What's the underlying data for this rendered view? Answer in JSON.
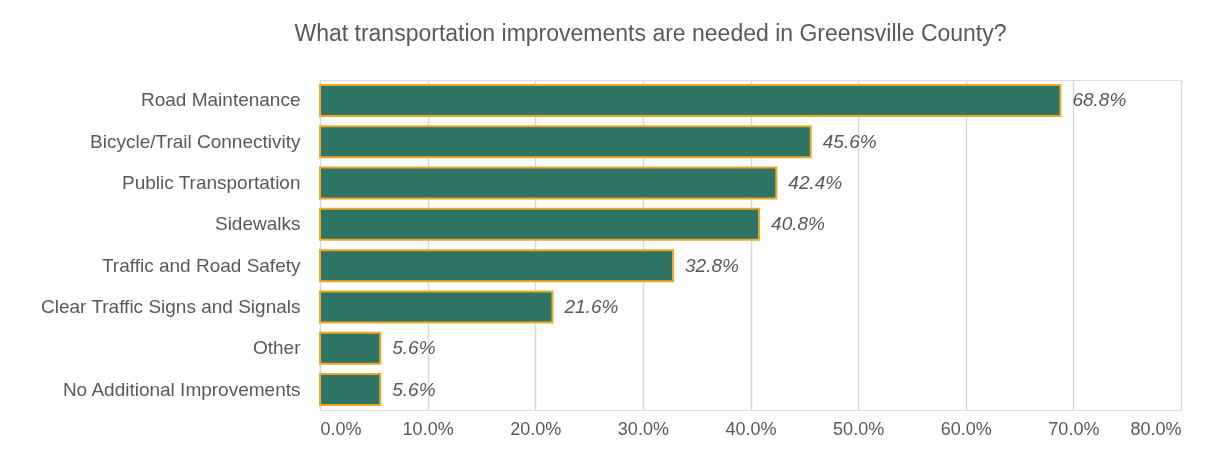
{
  "chart_data": {
    "type": "bar",
    "orientation": "horizontal",
    "title": "What transportation improvements are needed in Greensville County?",
    "categories": [
      "Road Maintenance",
      "Bicycle/Trail Connectivity",
      "Public Transportation",
      "Sidewalks",
      "Traffic and Road Safety",
      "Clear Traffic Signs and Signals",
      "Other",
      "No Additional Improvements"
    ],
    "series": [
      {
        "color": "#2e7566",
        "values": [
          68.8,
          45.6,
          42.4,
          40.8,
          32.8,
          21.6,
          5.6,
          5.6
        ],
        "value_labels": [
          "68.8%",
          "45.6%",
          "42.4%",
          "40.8%",
          "32.8%",
          "21.6%",
          "5.6%",
          "5.6%"
        ]
      }
    ],
    "xlim": [
      0,
      80
    ],
    "xticks": [
      {
        "value": 0,
        "label": "0.0%"
      },
      {
        "value": 10,
        "label": "10.0%"
      },
      {
        "value": 20,
        "label": "20.0%"
      },
      {
        "value": 30,
        "label": "30.0%"
      },
      {
        "value": 40,
        "label": "40.0%"
      },
      {
        "value": 50,
        "label": "50.0%"
      },
      {
        "value": 60,
        "label": "60.0%"
      },
      {
        "value": 70,
        "label": "70.0%"
      },
      {
        "value": 80,
        "label": "80.0%"
      }
    ],
    "grid": "x",
    "legend": false
  }
}
